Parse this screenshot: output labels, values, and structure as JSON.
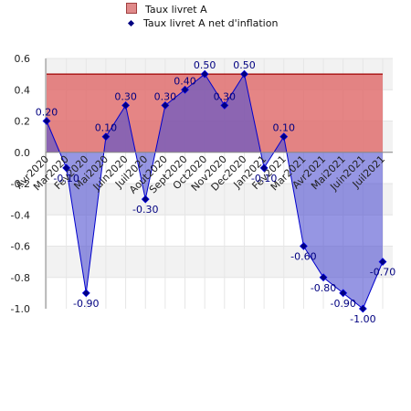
{
  "legend": {
    "series1_label": "Taux livret A",
    "series2_label": "Taux livret A net d'inflation"
  },
  "colors": {
    "series1_fill": "#e07070",
    "series1_line": "#a00000",
    "series2_fill": "#5050d0",
    "series2_line": "#0000cc",
    "series2_marker": "#000080",
    "grid_band": "#f2f2f2"
  },
  "chart_data": {
    "type": "area",
    "categories": [
      "Avr2020",
      "Mar2020",
      "Fev2020",
      "Mai2020",
      "Juin2020",
      "Juil2020",
      "Aout2020",
      "Sept2020",
      "Oct2020",
      "Nov2020",
      "Dec2020",
      "Jan2021",
      "Fev2021",
      "Mar2021",
      "Avr2021",
      "Mai2021",
      "Juin2021",
      "Juil2021"
    ],
    "series": [
      {
        "name": "Taux livret A",
        "style": "area",
        "values": [
          0.5,
          0.5,
          0.5,
          0.5,
          0.5,
          0.5,
          0.5,
          0.5,
          0.5,
          0.5,
          0.5,
          0.5,
          0.5,
          0.5,
          0.5,
          0.5,
          0.5,
          0.5
        ]
      },
      {
        "name": "Taux livret A net d'inflation",
        "style": "line-area-markers",
        "values": [
          0.2,
          -0.1,
          -0.9,
          0.1,
          0.3,
          -0.3,
          0.3,
          0.4,
          0.5,
          0.3,
          0.5,
          -0.1,
          0.1,
          -0.6,
          -0.8,
          -0.9,
          -1.0,
          -0.7
        ],
        "labels": [
          "0.20",
          "-0.10",
          "-0.90",
          "0.10",
          "0.30",
          "-0.30",
          "0.30",
          "0.40",
          "0.50",
          "0.30",
          "0.50",
          "-0.10",
          "0.10",
          "-0.60",
          "-0.80",
          "-0.90",
          "-1.00",
          "-0.70"
        ]
      }
    ],
    "ylim": [
      -1.0,
      0.6
    ],
    "yticks": [
      "0.6",
      "0.4",
      "0.2",
      "0.0",
      "-0.2",
      "-0.4",
      "-0.6",
      "-0.8",
      "-1.0"
    ],
    "ytick_values": [
      0.6,
      0.4,
      0.2,
      0.0,
      -0.2,
      -0.4,
      -0.6,
      -0.8,
      -1.0
    ],
    "grid": true,
    "legend_position": "top"
  }
}
